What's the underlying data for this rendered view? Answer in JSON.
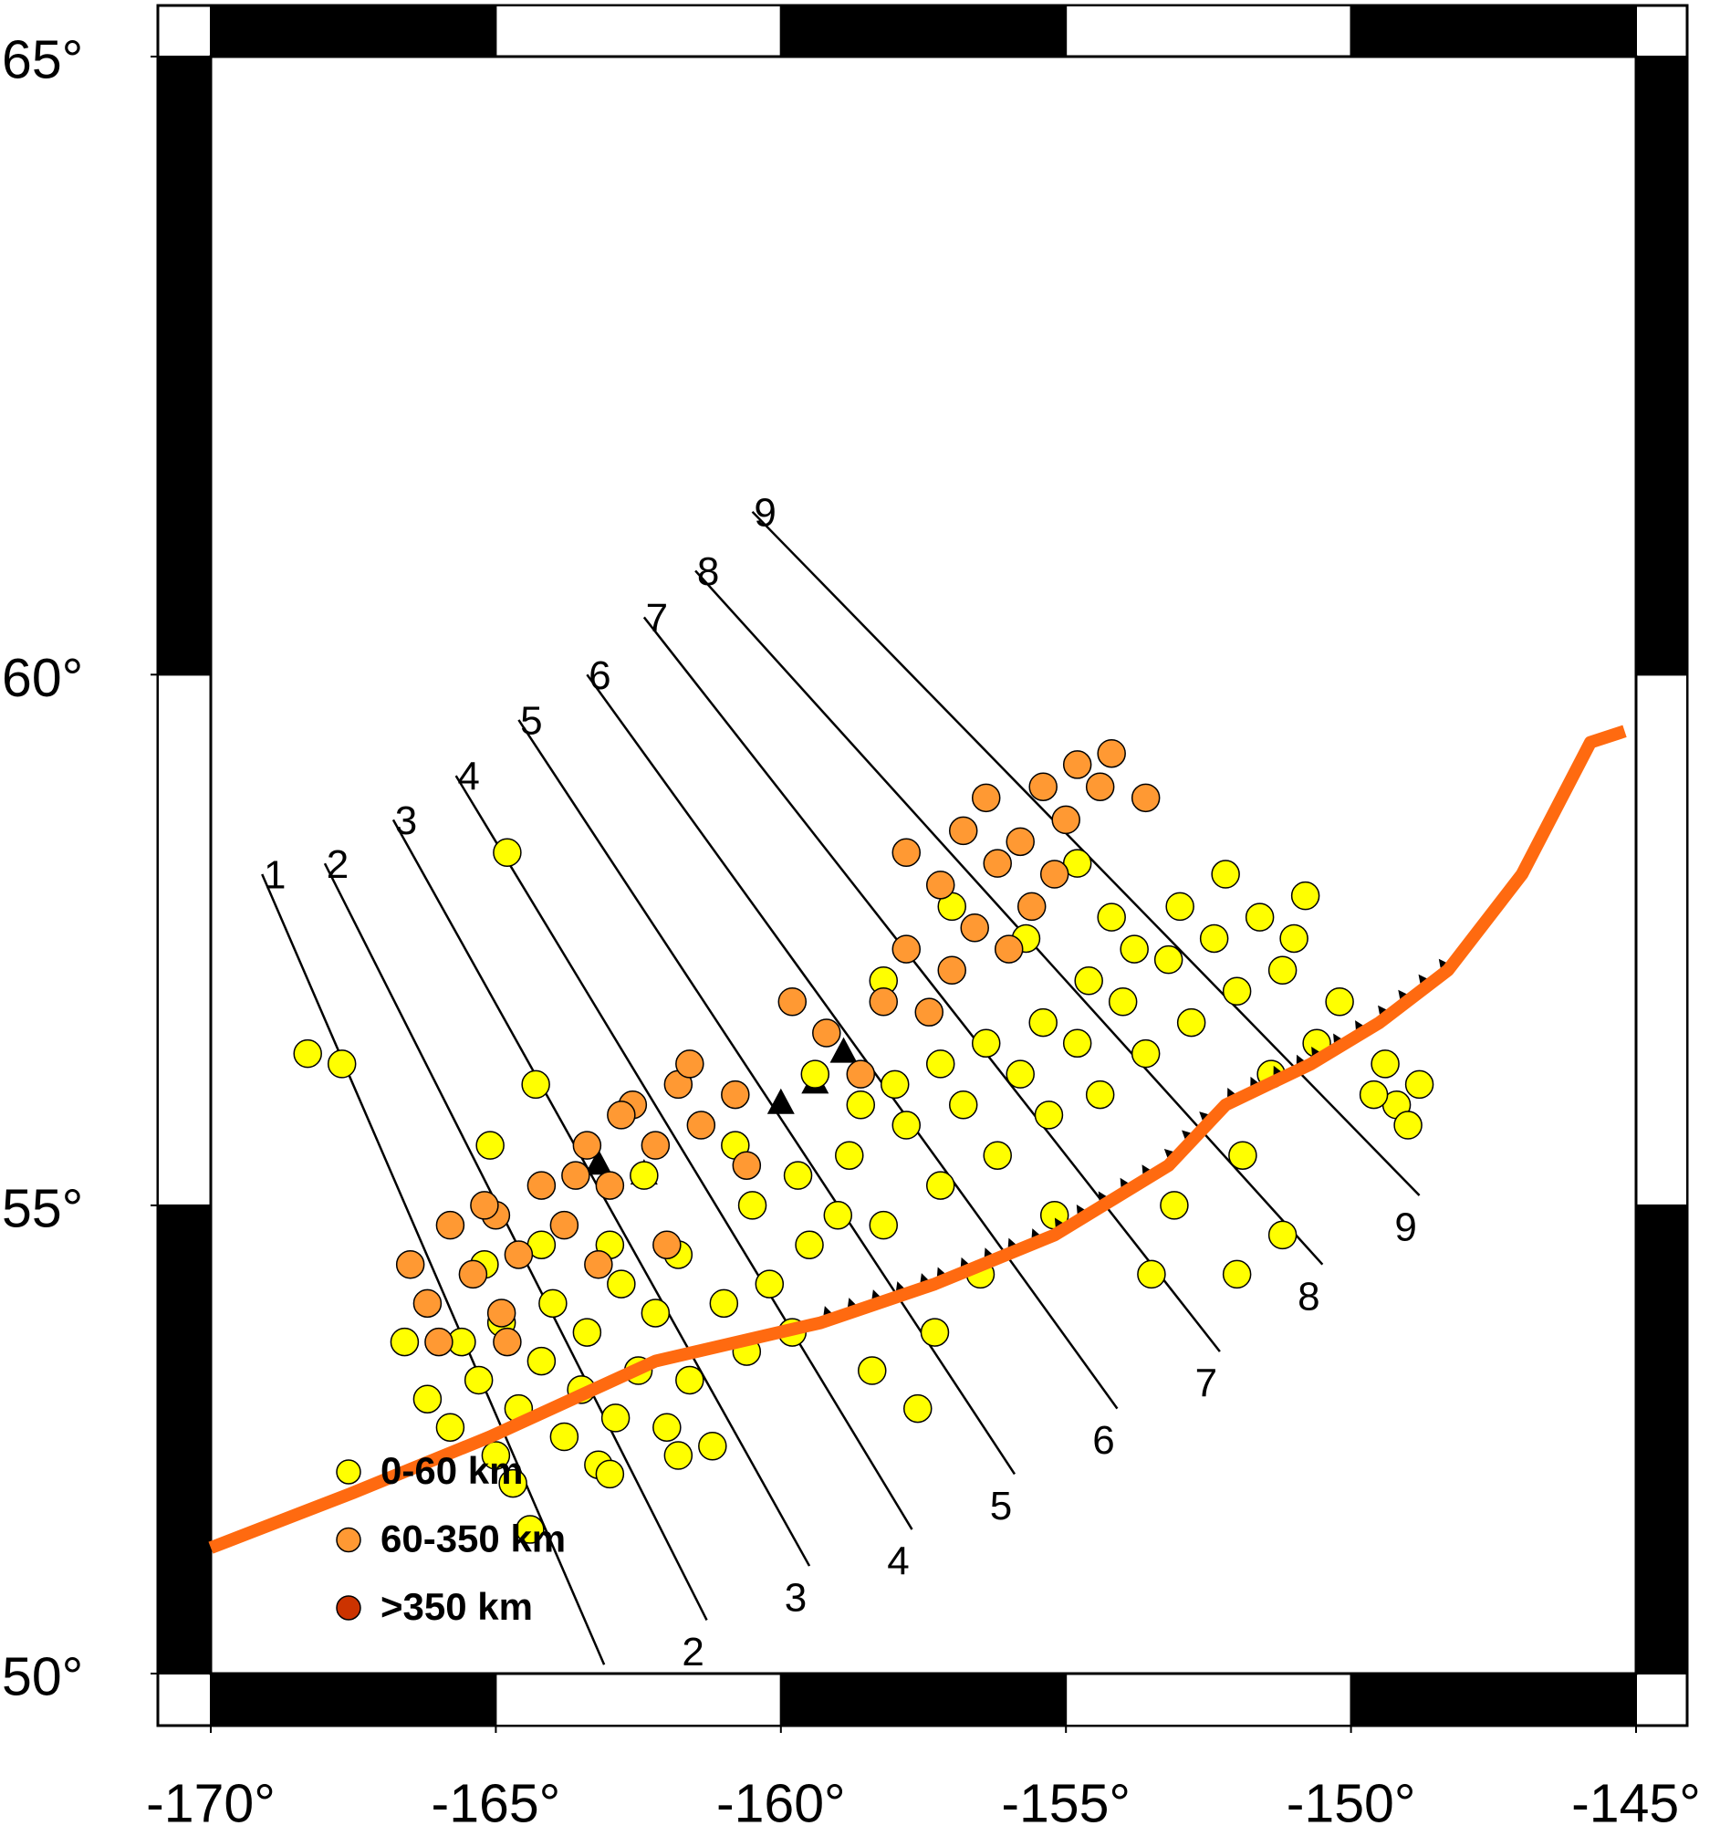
{
  "map": {
    "lon_range": [
      -170,
      -145
    ],
    "lat_range": [
      50,
      65
    ],
    "lon_ticks": [
      {
        "value": -170,
        "label": "-170°"
      },
      {
        "value": -165,
        "label": "-165°"
      },
      {
        "value": -160,
        "label": "-160°"
      },
      {
        "value": -155,
        "label": "-155°"
      },
      {
        "value": -150,
        "label": "-150°"
      },
      {
        "value": -145,
        "label": "-145°"
      }
    ],
    "lat_ticks": [
      {
        "value": 50,
        "label": "50°"
      },
      {
        "value": 55,
        "label": "55°"
      },
      {
        "value": 60,
        "label": "60°"
      },
      {
        "value": 65,
        "label": "65°"
      }
    ],
    "profiles": [
      {
        "labels": [
          "1"
        ],
        "start": [
          -169.1,
          58.2
        ],
        "end": [
          -163.1,
          50.1
        ]
      },
      {
        "labels": [
          "2",
          "2"
        ],
        "start": [
          -168.0,
          58.3
        ],
        "end": [
          -161.3,
          50.6
        ]
      },
      {
        "labels": [
          "3",
          "3"
        ],
        "start": [
          -166.8,
          58.7
        ],
        "end": [
          -159.5,
          51.2
        ]
      },
      {
        "labels": [
          "4",
          "4"
        ],
        "start": [
          -165.7,
          59.1
        ],
        "end": [
          -157.7,
          51.6
        ]
      },
      {
        "labels": [
          "5",
          "5"
        ],
        "start": [
          -164.6,
          59.6
        ],
        "end": [
          -155.9,
          52.2
        ]
      },
      {
        "labels": [
          "6",
          "6"
        ],
        "start": [
          -163.4,
          60.0
        ],
        "end": [
          -154.1,
          52.9
        ]
      },
      {
        "labels": [
          "7",
          "7"
        ],
        "start": [
          -162.4,
          60.5
        ],
        "end": [
          -152.3,
          53.5
        ]
      },
      {
        "labels": [
          "8",
          "8"
        ],
        "start": [
          -161.5,
          60.9
        ],
        "end": [
          -150.5,
          54.4
        ]
      },
      {
        "labels": [
          "9",
          "9"
        ],
        "start": [
          -160.5,
          61.4
        ],
        "end": [
          -148.8,
          55.1
        ]
      }
    ],
    "trench": {
      "color": "#ff6a10",
      "lon": [
        -170.0,
        -167.5,
        -165.1,
        -162.2,
        -159.3,
        -157.3,
        -155.2,
        -153.2,
        -152.2,
        -150.7,
        -149.5,
        -148.3,
        -147.0,
        -145.8,
        -145.2
      ],
      "lat": [
        51.4,
        52.0,
        52.6,
        53.4,
        53.8,
        54.2,
        54.7,
        55.4,
        56.0,
        56.4,
        56.8,
        57.3,
        58.2,
        59.4,
        59.5
      ]
    },
    "volcanoes": [
      [
        -160.0,
        56.0
      ],
      [
        -159.4,
        56.2
      ],
      [
        -158.9,
        56.5
      ],
      [
        -163.2,
        55.4
      ],
      [
        -162.4,
        55.3
      ]
    ],
    "earthquakes": [
      {
        "name": "0-60 km",
        "color": "#ffff00",
        "points": [
          [
            -164.8,
            58.4
          ],
          [
            -168.3,
            56.5
          ],
          [
            -167.7,
            56.4
          ],
          [
            -164.3,
            56.2
          ],
          [
            -165.1,
            55.6
          ],
          [
            -166.2,
            53.0
          ],
          [
            -165.8,
            52.7
          ],
          [
            -165.3,
            53.2
          ],
          [
            -165.0,
            52.4
          ],
          [
            -164.6,
            52.9
          ],
          [
            -164.2,
            53.4
          ],
          [
            -163.8,
            52.6
          ],
          [
            -163.5,
            53.1
          ],
          [
            -163.2,
            52.3
          ],
          [
            -162.9,
            52.8
          ],
          [
            -162.5,
            53.3
          ],
          [
            -162.0,
            52.7
          ],
          [
            -161.6,
            53.2
          ],
          [
            -161.2,
            52.5
          ],
          [
            -165.6,
            53.6
          ],
          [
            -164.9,
            53.8
          ],
          [
            -164.0,
            54.0
          ],
          [
            -163.4,
            53.7
          ],
          [
            -162.8,
            54.2
          ],
          [
            -162.2,
            53.9
          ],
          [
            -161.8,
            54.5
          ],
          [
            -161.0,
            54.0
          ],
          [
            -160.6,
            53.5
          ],
          [
            -160.2,
            54.2
          ],
          [
            -159.8,
            53.7
          ],
          [
            -159.5,
            54.6
          ],
          [
            -159.0,
            54.9
          ],
          [
            -160.5,
            55.0
          ],
          [
            -159.7,
            55.3
          ],
          [
            -158.8,
            55.5
          ],
          [
            -158.2,
            54.8
          ],
          [
            -157.8,
            55.8
          ],
          [
            -157.2,
            55.2
          ],
          [
            -156.8,
            56.0
          ],
          [
            -156.2,
            55.5
          ],
          [
            -155.8,
            56.3
          ],
          [
            -155.3,
            55.9
          ],
          [
            -154.8,
            56.6
          ],
          [
            -154.4,
            56.1
          ],
          [
            -154.0,
            57.0
          ],
          [
            -153.6,
            56.5
          ],
          [
            -153.2,
            57.4
          ],
          [
            -152.8,
            56.8
          ],
          [
            -152.4,
            57.6
          ],
          [
            -152.0,
            57.1
          ],
          [
            -151.6,
            57.8
          ],
          [
            -151.2,
            57.3
          ],
          [
            -150.8,
            58.0
          ],
          [
            -151.0,
            57.6
          ],
          [
            -152.2,
            58.2
          ],
          [
            -153.0,
            57.9
          ],
          [
            -153.8,
            57.5
          ],
          [
            -154.6,
            57.2
          ],
          [
            -155.4,
            56.8
          ],
          [
            -156.4,
            56.6
          ],
          [
            -157.2,
            56.4
          ],
          [
            -158.0,
            56.2
          ],
          [
            -158.6,
            56.0
          ],
          [
            -149.4,
            56.4
          ],
          [
            -149.2,
            56.0
          ],
          [
            -149.0,
            55.8
          ],
          [
            -148.8,
            56.2
          ],
          [
            -149.6,
            56.1
          ],
          [
            -158.4,
            53.3
          ],
          [
            -157.6,
            52.9
          ],
          [
            -157.3,
            53.7
          ],
          [
            -156.5,
            54.3
          ],
          [
            -153.5,
            54.3
          ],
          [
            -152.0,
            54.3
          ],
          [
            -151.2,
            54.7
          ],
          [
            -151.9,
            55.5
          ],
          [
            -153.1,
            55.0
          ],
          [
            -155.2,
            54.9
          ],
          [
            -161.8,
            52.4
          ],
          [
            -164.4,
            51.6
          ],
          [
            -164.7,
            52.1
          ],
          [
            -163.0,
            52.2
          ],
          [
            -155.7,
            57.6
          ],
          [
            -154.8,
            58.3
          ],
          [
            -154.2,
            57.8
          ],
          [
            -157.0,
            57.9
          ],
          [
            -158.2,
            57.2
          ],
          [
            -159.4,
            56.3
          ],
          [
            -160.8,
            55.6
          ],
          [
            -162.4,
            55.3
          ],
          [
            -163.0,
            54.6
          ],
          [
            -164.2,
            54.6
          ],
          [
            -165.2,
            54.4
          ],
          [
            -166.6,
            53.6
          ],
          [
            -150.2,
            57.0
          ],
          [
            -151.4,
            56.3
          ],
          [
            -150.6,
            56.6
          ]
        ]
      },
      {
        "name": "60-350 km",
        "color": "#ff9933",
        "points": [
          [
            -166.5,
            54.4
          ],
          [
            -166.2,
            54.0
          ],
          [
            -165.8,
            54.8
          ],
          [
            -165.4,
            54.3
          ],
          [
            -165.0,
            54.9
          ],
          [
            -164.6,
            54.5
          ],
          [
            -164.2,
            55.2
          ],
          [
            -163.8,
            54.8
          ],
          [
            -163.4,
            55.6
          ],
          [
            -163.0,
            55.2
          ],
          [
            -162.6,
            56.0
          ],
          [
            -162.2,
            55.6
          ],
          [
            -161.8,
            56.2
          ],
          [
            -161.4,
            55.8
          ],
          [
            -162.8,
            55.9
          ],
          [
            -163.6,
            55.3
          ],
          [
            -164.9,
            53.9
          ],
          [
            -166.0,
            53.6
          ],
          [
            -165.2,
            55.0
          ],
          [
            -161.6,
            56.4
          ],
          [
            -160.8,
            56.1
          ],
          [
            -159.2,
            56.7
          ],
          [
            -159.8,
            57.0
          ],
          [
            -158.6,
            56.3
          ],
          [
            -158.2,
            57.0
          ],
          [
            -157.8,
            57.5
          ],
          [
            -157.4,
            56.9
          ],
          [
            -157.0,
            57.3
          ],
          [
            -157.2,
            58.1
          ],
          [
            -156.6,
            57.7
          ],
          [
            -156.2,
            58.3
          ],
          [
            -156.4,
            58.9
          ],
          [
            -155.8,
            58.5
          ],
          [
            -155.4,
            59.0
          ],
          [
            -155.0,
            58.7
          ],
          [
            -154.8,
            59.2
          ],
          [
            -154.4,
            59.0
          ],
          [
            -154.2,
            59.3
          ],
          [
            -155.6,
            57.9
          ],
          [
            -156.0,
            57.5
          ],
          [
            -155.2,
            58.2
          ],
          [
            -153.6,
            58.9
          ],
          [
            -157.8,
            58.4
          ],
          [
            -160.6,
            55.4
          ],
          [
            -162.0,
            54.6
          ],
          [
            -163.2,
            54.4
          ],
          [
            -164.8,
            53.6
          ],
          [
            -156.8,
            58.6
          ]
        ]
      },
      {
        "name": ">350 km",
        "color": "#cc3300",
        "points": []
      }
    ]
  }
}
